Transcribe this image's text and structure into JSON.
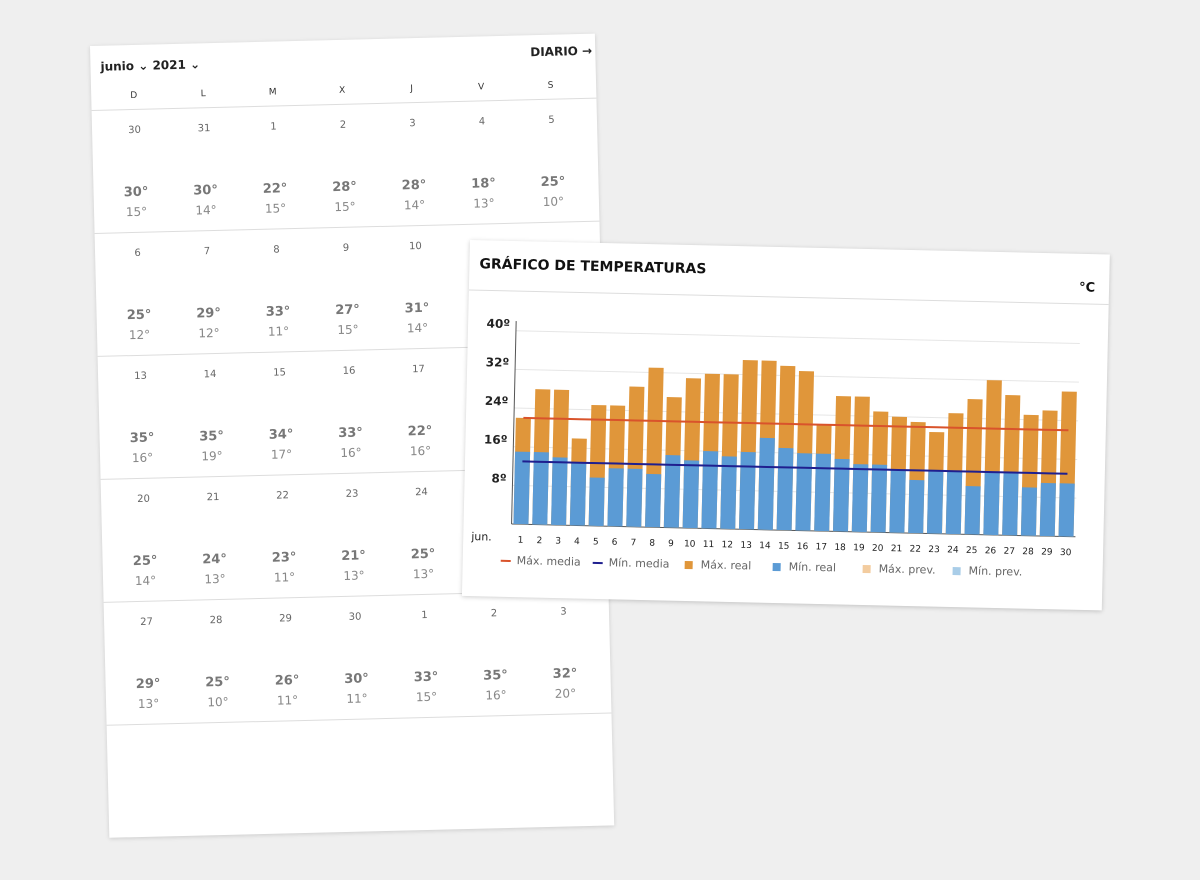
{
  "calendar": {
    "month": "junio",
    "year": "2021",
    "link": "DIARIO",
    "weekdays": [
      "D",
      "L",
      "M",
      "X",
      "J",
      "V",
      "S"
    ],
    "weeks": [
      [
        {
          "day": 30,
          "max": "30°",
          "min": "15°"
        },
        {
          "day": 31,
          "max": "30°",
          "min": "14°"
        },
        {
          "day": 1,
          "max": "22°",
          "min": "15°"
        },
        {
          "day": 2,
          "max": "28°",
          "min": "15°"
        },
        {
          "day": 3,
          "max": "28°",
          "min": "14°"
        },
        {
          "day": 4,
          "max": "18°",
          "min": "13°"
        },
        {
          "day": 5,
          "max": "25°",
          "min": "10°"
        }
      ],
      [
        {
          "day": 6,
          "max": "25°",
          "min": "12°"
        },
        {
          "day": 7,
          "max": "29°",
          "min": "12°"
        },
        {
          "day": 8,
          "max": "33°",
          "min": "11°"
        },
        {
          "day": 9,
          "max": "27°",
          "min": "15°"
        },
        {
          "day": 10,
          "max": "31°",
          "min": "14°"
        }
      ],
      [
        {
          "day": 13,
          "max": "35°",
          "min": "16°"
        },
        {
          "day": 14,
          "max": "35°",
          "min": "19°"
        },
        {
          "day": 15,
          "max": "34°",
          "min": "17°"
        },
        {
          "day": 16,
          "max": "33°",
          "min": "16°"
        },
        {
          "day": 17,
          "max": "22°",
          "min": "16°"
        }
      ],
      [
        {
          "day": 20,
          "max": "25°",
          "min": "14°"
        },
        {
          "day": 21,
          "max": "24°",
          "min": "13°"
        },
        {
          "day": 22,
          "max": "23°",
          "min": "11°"
        },
        {
          "day": 23,
          "max": "21°",
          "min": "13°"
        },
        {
          "day": 24,
          "max": "25°",
          "min": "13°"
        }
      ],
      [
        {
          "day": 27,
          "max": "29°",
          "min": "13°"
        },
        {
          "day": 28,
          "max": "25°",
          "min": "10°"
        },
        {
          "day": 29,
          "max": "26°",
          "min": "11°"
        },
        {
          "day": 30,
          "max": "30°",
          "min": "11°"
        },
        {
          "day": 1,
          "max": "33°",
          "min": "15°"
        },
        {
          "day": 2,
          "max": "35°",
          "min": "16°"
        },
        {
          "day": 3,
          "max": "32°",
          "min": "20°"
        }
      ]
    ]
  },
  "chart_data": {
    "type": "bar",
    "title": "GRÁFICO DE TEMPERATURAS",
    "y_unit": "°C",
    "xlabel": "jun.",
    "categories": [
      1,
      2,
      3,
      4,
      5,
      6,
      7,
      8,
      9,
      10,
      11,
      12,
      13,
      14,
      15,
      16,
      17,
      18,
      19,
      20,
      21,
      22,
      23,
      24,
      25,
      26,
      27,
      28,
      29,
      30
    ],
    "ylim": [
      0,
      42
    ],
    "yticks": [
      {
        "value": 8,
        "label": "8º"
      },
      {
        "value": 16,
        "label": "16º"
      },
      {
        "value": 24,
        "label": "24º"
      },
      {
        "value": 32,
        "label": "32º"
      },
      {
        "value": 40,
        "label": "40º"
      }
    ],
    "grid": true,
    "series": [
      {
        "name": "Máx. media",
        "kind": "line",
        "color": "#d9532b",
        "values": [
          22,
          22,
          22,
          22,
          22,
          22,
          22,
          22,
          22,
          22,
          22,
          22,
          22,
          22,
          22,
          22,
          22,
          22,
          22,
          22,
          22,
          22,
          22,
          22,
          22,
          22,
          22,
          22,
          22,
          22
        ]
      },
      {
        "name": "Mín. media",
        "kind": "line",
        "color": "#1f1f8f",
        "values": [
          13,
          13,
          13,
          13,
          13,
          13,
          13,
          13,
          13,
          13,
          13,
          13,
          13,
          13,
          13,
          13,
          13,
          13,
          13,
          13,
          13,
          13,
          13,
          13,
          13,
          13,
          13,
          13,
          13,
          13
        ]
      },
      {
        "name": "Máx. real",
        "kind": "bar",
        "color": "#e0963a",
        "values": [
          22,
          28,
          28,
          18,
          25,
          25,
          29,
          33,
          27,
          31,
          32,
          32,
          35,
          35,
          34,
          33,
          22,
          28,
          28,
          25,
          24,
          23,
          21,
          25,
          28,
          32,
          29,
          25,
          26,
          30
        ]
      },
      {
        "name": "Mín. real",
        "kind": "bar",
        "color": "#5b9bd5",
        "values": [
          15,
          15,
          14,
          13,
          10,
          12,
          12,
          11,
          15,
          14,
          16,
          15,
          16,
          19,
          17,
          16,
          16,
          15,
          14,
          14,
          13,
          11,
          13,
          13,
          10,
          13,
          13,
          10,
          11,
          11
        ]
      },
      {
        "name": "Máx. prev.",
        "kind": "bar",
        "color": "#f3cc9f",
        "values": [
          null,
          null,
          null,
          null,
          null,
          null,
          null,
          null,
          null,
          null,
          null,
          null,
          null,
          null,
          null,
          null,
          null,
          null,
          null,
          null,
          null,
          null,
          null,
          null,
          null,
          null,
          null,
          null,
          null,
          null
        ]
      },
      {
        "name": "Mín. prev.",
        "kind": "bar",
        "color": "#a9cde8",
        "values": [
          null,
          null,
          null,
          null,
          null,
          null,
          null,
          null,
          null,
          null,
          null,
          null,
          null,
          null,
          null,
          null,
          null,
          null,
          null,
          null,
          null,
          null,
          null,
          null,
          null,
          null,
          null,
          null,
          null,
          null
        ]
      }
    ]
  }
}
